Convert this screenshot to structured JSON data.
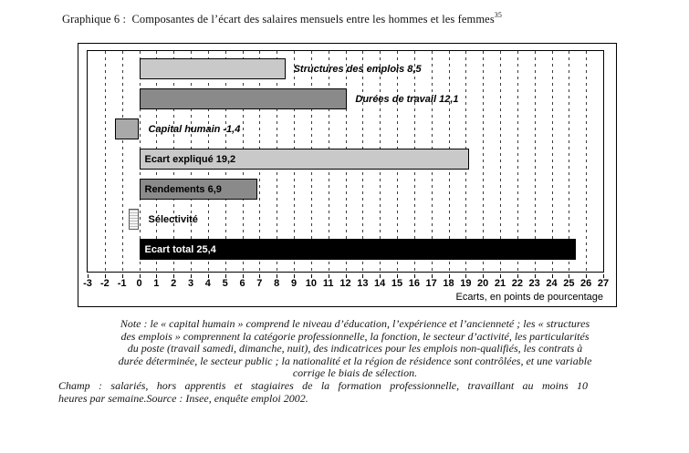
{
  "title": {
    "text": "Graphique 6 :  Composantes de l’écart des salaires mensuels entre les hommes et les femmes",
    "footnote": "35"
  },
  "chart_data": {
    "type": "bar",
    "orientation": "horizontal",
    "xlabel": "Ecarts, en points de pourcentage",
    "xlim": [
      -3,
      27
    ],
    "xticks": [
      -3,
      -2,
      -1,
      0,
      1,
      2,
      3,
      4,
      5,
      6,
      7,
      8,
      9,
      10,
      11,
      12,
      13,
      14,
      15,
      16,
      17,
      18,
      19,
      20,
      21,
      22,
      23,
      24,
      25,
      26,
      27
    ],
    "grid": "vertical-dashed",
    "bars": [
      {
        "category": "Structures des emplois",
        "value": 8.5,
        "label": "Structures des emplois 8,5",
        "color": "#c9c9c9",
        "label_placement": "outside",
        "label_style": "italic"
      },
      {
        "category": "Durées de travail",
        "value": 12.1,
        "label": "Durées de travail 12,1",
        "color": "#8a8a8a",
        "label_placement": "outside",
        "label_style": "italic"
      },
      {
        "category": "Capital humain",
        "value": -1.4,
        "label": "Capital humain -1,4",
        "color": "#a9a9a9",
        "label_placement": "outside",
        "label_style": "italic"
      },
      {
        "category": "Ecart expliqué",
        "value": 19.2,
        "label": "Ecart expliqué 19,2",
        "color": "#c9c9c9",
        "label_placement": "inside",
        "label_style": "normal"
      },
      {
        "category": "Rendements",
        "value": 6.9,
        "label": "Rendements 6,9",
        "color": "#8a8a8a",
        "label_placement": "inside",
        "label_style": "normal"
      },
      {
        "category": "Sélectivité",
        "value": -0.6,
        "value_estimated": true,
        "label": "Sélectivité",
        "color": "striped",
        "label_placement": "outside",
        "label_style": "normal"
      },
      {
        "category": "Ecart total",
        "value": 25.4,
        "label": "Ecart total 25,4",
        "color": "#000000",
        "label_color": "#ffffff",
        "label_placement": "inside",
        "label_style": "normal"
      }
    ]
  },
  "note_lines": [
    "Note : le « capital humain » comprend le niveau d’éducation, l’expérience et l’ancienneté ; les « structures",
    "des emplois » comprennent la catégorie professionnelle, la fonction, le secteur d’activité, les particularités",
    "du poste (travail samedi, dimanche, nuit), des indicatrices pour les emplois non-qualifiés, les contrats à",
    "durée déterminée, le secteur public ; la nationalité et la région de résidence sont contrôlées, et une variable",
    "corrige le biais de sélection."
  ],
  "champ_lines": [
    "Champ : salariés, hors apprentis et stagiaires de la formation professionnelle, travaillant au moins 10",
    "heures par semaine.Source : Insee, enquête emploi 2002."
  ]
}
